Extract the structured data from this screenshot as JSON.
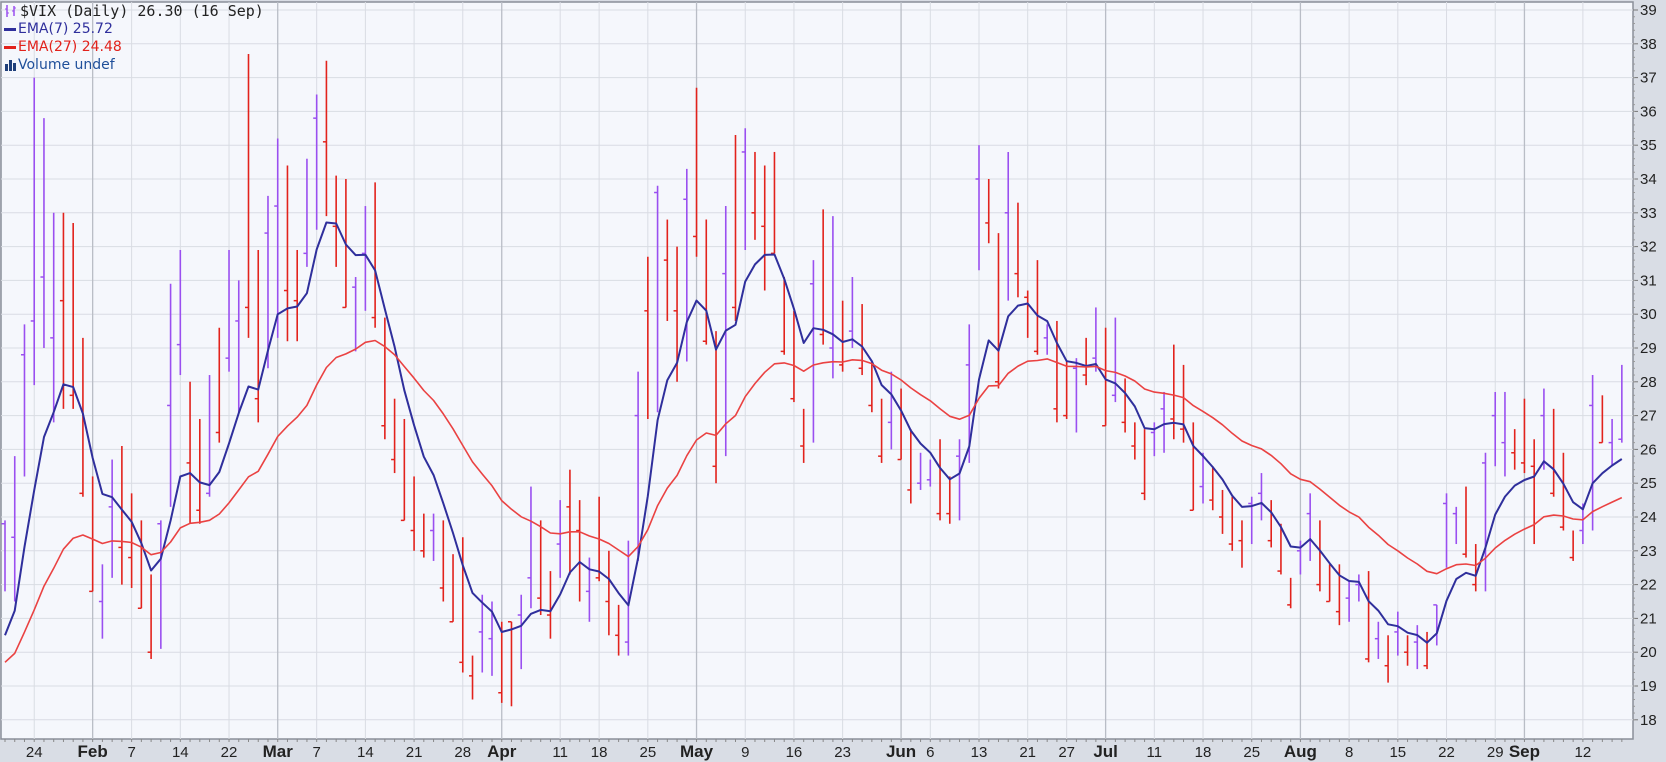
{
  "legend": {
    "title": "$VIX (Daily) 26.30 (16 Sep)",
    "ema7": "EMA(7) 25.72",
    "ema27": "EMA(27) 24.48",
    "volume": "Volume undef"
  },
  "colors": {
    "up": "#9a4ff0",
    "down": "#e2221c",
    "ema7": "#2f2f9c",
    "ema27": "#ea4242",
    "plot_bg": "#f5f7fc",
    "grid": "#d9dce3",
    "month_grid": "#b9bdc6"
  },
  "chart_data": {
    "type": "ohlc-bar",
    "symbol": "$VIX",
    "ylim": [
      18,
      39
    ],
    "y_ticks": [
      18,
      19,
      20,
      21,
      22,
      23,
      24,
      25,
      26,
      27,
      28,
      29,
      30,
      31,
      32,
      33,
      34,
      35,
      36,
      37,
      38,
      39
    ],
    "grid": true,
    "legend_position": "top-left",
    "overlays": [
      {
        "name": "EMA(7)",
        "period": 7,
        "last": 25.72,
        "first": 20.5
      },
      {
        "name": "EMA(27)",
        "period": 27,
        "last": 24.48,
        "first": 19.7
      }
    ],
    "x_ticks": [
      {
        "label": "24",
        "bar": 3,
        "month": false
      },
      {
        "label": "Feb",
        "bar": 9,
        "month": true
      },
      {
        "label": "7",
        "bar": 13,
        "month": false
      },
      {
        "label": "14",
        "bar": 18,
        "month": false
      },
      {
        "label": "22",
        "bar": 23,
        "month": false
      },
      {
        "label": "Mar",
        "bar": 28,
        "month": true
      },
      {
        "label": "7",
        "bar": 32,
        "month": false
      },
      {
        "label": "14",
        "bar": 37,
        "month": false
      },
      {
        "label": "21",
        "bar": 42,
        "month": false
      },
      {
        "label": "28",
        "bar": 47,
        "month": false
      },
      {
        "label": "Apr",
        "bar": 51,
        "month": true
      },
      {
        "label": "11",
        "bar": 57,
        "month": false
      },
      {
        "label": "18",
        "bar": 61,
        "month": false
      },
      {
        "label": "25",
        "bar": 66,
        "month": false
      },
      {
        "label": "May",
        "bar": 71,
        "month": true
      },
      {
        "label": "9",
        "bar": 76,
        "month": false
      },
      {
        "label": "16",
        "bar": 81,
        "month": false
      },
      {
        "label": "23",
        "bar": 86,
        "month": false
      },
      {
        "label": "Jun",
        "bar": 92,
        "month": true
      },
      {
        "label": "6",
        "bar": 95,
        "month": false
      },
      {
        "label": "13",
        "bar": 100,
        "month": false
      },
      {
        "label": "21",
        "bar": 105,
        "month": false
      },
      {
        "label": "27",
        "bar": 109,
        "month": false
      },
      {
        "label": "Jul",
        "bar": 113,
        "month": true
      },
      {
        "label": "11",
        "bar": 118,
        "month": false
      },
      {
        "label": "18",
        "bar": 123,
        "month": false
      },
      {
        "label": "25",
        "bar": 128,
        "month": false
      },
      {
        "label": "Aug",
        "bar": 133,
        "month": true
      },
      {
        "label": "8",
        "bar": 138,
        "month": false
      },
      {
        "label": "15",
        "bar": 143,
        "month": false
      },
      {
        "label": "22",
        "bar": 148,
        "month": false
      },
      {
        "label": "29",
        "bar": 153,
        "month": false
      },
      {
        "label": "Sep",
        "bar": 156,
        "month": true
      },
      {
        "label": "12",
        "bar": 162,
        "month": false
      }
    ],
    "bars_format": [
      "high",
      "low",
      "close",
      "direction"
    ],
    "bars": [
      [
        23.9,
        21.8,
        23.8,
        "u"
      ],
      [
        25.8,
        21.5,
        23.4,
        "u"
      ],
      [
        29.7,
        25.2,
        28.8,
        "u"
      ],
      [
        37.0,
        27.9,
        29.8,
        "u"
      ],
      [
        35.8,
        29.0,
        31.1,
        "u"
      ],
      [
        33.0,
        26.8,
        29.3,
        "u"
      ],
      [
        33.0,
        27.2,
        30.4,
        "d"
      ],
      [
        32.7,
        27.2,
        27.6,
        "d"
      ],
      [
        29.3,
        24.6,
        24.7,
        "d"
      ],
      [
        25.2,
        21.8,
        21.8,
        "d"
      ],
      [
        22.6,
        20.4,
        21.5,
        "u"
      ],
      [
        25.7,
        22.2,
        24.3,
        "u"
      ],
      [
        26.1,
        22.0,
        23.1,
        "d"
      ],
      [
        24.7,
        21.9,
        22.8,
        "d"
      ],
      [
        23.9,
        21.3,
        21.3,
        "d"
      ],
      [
        22.3,
        19.8,
        20.0,
        "d"
      ],
      [
        23.9,
        20.1,
        23.8,
        "u"
      ],
      [
        30.9,
        24.3,
        27.3,
        "u"
      ],
      [
        31.9,
        28.2,
        29.1,
        "u"
      ],
      [
        28.0,
        23.8,
        25.6,
        "d"
      ],
      [
        26.9,
        23.8,
        24.2,
        "d"
      ],
      [
        28.2,
        24.6,
        24.7,
        "u"
      ],
      [
        29.6,
        26.2,
        26.5,
        "d"
      ],
      [
        31.9,
        28.3,
        28.7,
        "u"
      ],
      [
        31.0,
        27.1,
        29.8,
        "u"
      ],
      [
        37.7,
        29.3,
        30.2,
        "d"
      ],
      [
        31.9,
        26.8,
        27.5,
        "d"
      ],
      [
        33.5,
        28.4,
        32.4,
        "u"
      ],
      [
        35.2,
        29.3,
        33.2,
        "u"
      ],
      [
        34.4,
        29.2,
        30.7,
        "d"
      ],
      [
        31.9,
        29.2,
        30.4,
        "d"
      ],
      [
        34.6,
        31.4,
        31.8,
        "u"
      ],
      [
        36.5,
        32.5,
        35.8,
        "u"
      ],
      [
        37.5,
        32.9,
        35.1,
        "d"
      ],
      [
        34.1,
        31.4,
        32.6,
        "d"
      ],
      [
        34.0,
        30.2,
        30.2,
        "d"
      ],
      [
        31.1,
        28.9,
        30.8,
        "u"
      ],
      [
        33.2,
        30.1,
        31.8,
        "u"
      ],
      [
        33.9,
        29.6,
        29.9,
        "d"
      ],
      [
        29.9,
        26.3,
        26.7,
        "d"
      ],
      [
        27.5,
        25.3,
        25.7,
        "d"
      ],
      [
        26.9,
        23.9,
        23.9,
        "d"
      ],
      [
        25.2,
        23.0,
        23.6,
        "d"
      ],
      [
        24.1,
        22.8,
        23.0,
        "d"
      ],
      [
        24.1,
        22.7,
        23.6,
        "u"
      ],
      [
        23.9,
        21.5,
        21.9,
        "d"
      ],
      [
        22.9,
        20.9,
        20.9,
        "d"
      ],
      [
        23.4,
        19.4,
        19.7,
        "d"
      ],
      [
        19.9,
        18.6,
        19.3,
        "d"
      ],
      [
        21.7,
        19.4,
        20.6,
        "u"
      ],
      [
        21.5,
        19.3,
        20.4,
        "u"
      ],
      [
        20.9,
        18.5,
        18.8,
        "d"
      ],
      [
        20.9,
        18.4,
        20.9,
        "d"
      ],
      [
        21.7,
        19.5,
        21.1,
        "u"
      ],
      [
        24.9,
        21.3,
        22.2,
        "u"
      ],
      [
        23.9,
        21.1,
        21.6,
        "d"
      ],
      [
        22.4,
        20.4,
        21.1,
        "d"
      ],
      [
        24.5,
        22.2,
        23.2,
        "u"
      ],
      [
        25.4,
        22.3,
        24.3,
        "d"
      ],
      [
        24.5,
        21.5,
        23.6,
        "d"
      ],
      [
        22.8,
        20.9,
        21.8,
        "u"
      ],
      [
        24.6,
        22.1,
        22.2,
        "d"
      ],
      [
        23.0,
        20.5,
        21.5,
        "d"
      ],
      [
        21.4,
        19.9,
        20.5,
        "d"
      ],
      [
        23.3,
        19.9,
        20.3,
        "u"
      ],
      [
        28.3,
        22.7,
        27.0,
        "u"
      ],
      [
        31.7,
        26.9,
        30.1,
        "d"
      ],
      [
        33.8,
        27.1,
        33.6,
        "u"
      ],
      [
        32.8,
        29.8,
        31.6,
        "d"
      ],
      [
        32.0,
        28.0,
        30.1,
        "d"
      ],
      [
        34.3,
        28.6,
        33.4,
        "u"
      ],
      [
        36.7,
        31.7,
        32.3,
        "d"
      ],
      [
        32.8,
        29.1,
        29.2,
        "d"
      ],
      [
        29.5,
        25.0,
        25.5,
        "d"
      ],
      [
        33.2,
        25.8,
        31.2,
        "u"
      ],
      [
        35.3,
        29.8,
        30.2,
        "d"
      ],
      [
        35.5,
        31.9,
        34.8,
        "u"
      ],
      [
        34.8,
        32.2,
        33.0,
        "d"
      ],
      [
        34.4,
        30.7,
        32.6,
        "d"
      ],
      [
        34.8,
        31.8,
        31.8,
        "d"
      ],
      [
        31.1,
        28.8,
        28.9,
        "d"
      ],
      [
        30.1,
        27.4,
        27.5,
        "d"
      ],
      [
        27.2,
        25.6,
        26.1,
        "d"
      ],
      [
        31.6,
        26.2,
        30.9,
        "u"
      ],
      [
        33.1,
        29.1,
        29.4,
        "d"
      ],
      [
        32.9,
        28.1,
        29.0,
        "u"
      ],
      [
        30.4,
        28.3,
        28.5,
        "d"
      ],
      [
        31.1,
        29.0,
        29.5,
        "u"
      ],
      [
        30.3,
        28.2,
        28.4,
        "d"
      ],
      [
        28.6,
        27.1,
        27.3,
        "d"
      ],
      [
        27.5,
        25.6,
        25.8,
        "d"
      ],
      [
        28.3,
        26.0,
        26.8,
        "u"
      ],
      [
        27.8,
        25.7,
        25.7,
        "d"
      ],
      [
        26.6,
        24.4,
        24.8,
        "d"
      ],
      [
        25.9,
        24.8,
        25.0,
        "u"
      ],
      [
        25.7,
        24.9,
        25.1,
        "u"
      ],
      [
        26.3,
        23.9,
        24.1,
        "d"
      ],
      [
        25.2,
        23.8,
        24.1,
        "d"
      ],
      [
        26.3,
        23.9,
        25.8,
        "u"
      ],
      [
        29.7,
        25.6,
        28.5,
        "u"
      ],
      [
        35.0,
        31.3,
        34.0,
        "u"
      ],
      [
        34.0,
        32.1,
        32.7,
        "d"
      ],
      [
        32.4,
        27.8,
        28.0,
        "d"
      ],
      [
        34.8,
        30.4,
        33.0,
        "u"
      ],
      [
        33.3,
        30.5,
        31.2,
        "d"
      ],
      [
        30.7,
        29.3,
        30.5,
        "d"
      ],
      [
        31.6,
        28.8,
        28.9,
        "d"
      ],
      [
        29.7,
        28.8,
        29.3,
        "u"
      ],
      [
        29.8,
        26.8,
        27.2,
        "d"
      ],
      [
        28.6,
        26.9,
        27.0,
        "d"
      ],
      [
        28.7,
        26.5,
        28.4,
        "u"
      ],
      [
        29.3,
        27.9,
        28.2,
        "d"
      ],
      [
        30.2,
        28.3,
        28.7,
        "u"
      ],
      [
        29.6,
        26.7,
        26.7,
        "d"
      ],
      [
        29.9,
        27.4,
        27.6,
        "u"
      ],
      [
        28.1,
        26.5,
        26.8,
        "d"
      ],
      [
        26.8,
        25.7,
        26.1,
        "d"
      ],
      [
        26.6,
        24.5,
        24.7,
        "d"
      ],
      [
        26.8,
        25.8,
        26.5,
        "u"
      ],
      [
        27.7,
        25.9,
        27.2,
        "u"
      ],
      [
        29.1,
        26.3,
        26.9,
        "d"
      ],
      [
        28.5,
        26.2,
        26.6,
        "d"
      ],
      [
        26.8,
        24.2,
        24.2,
        "d"
      ],
      [
        25.9,
        24.4,
        24.9,
        "u"
      ],
      [
        25.5,
        24.2,
        24.5,
        "d"
      ],
      [
        24.8,
        23.5,
        24.0,
        "d"
      ],
      [
        24.6,
        23.0,
        23.2,
        "d"
      ],
      [
        23.9,
        22.5,
        23.3,
        "d"
      ],
      [
        24.6,
        23.2,
        24.4,
        "u"
      ],
      [
        25.3,
        23.9,
        24.7,
        "u"
      ],
      [
        24.5,
        23.1,
        23.3,
        "d"
      ],
      [
        23.8,
        22.3,
        22.4,
        "d"
      ],
      [
        22.2,
        21.3,
        21.4,
        "d"
      ],
      [
        23.3,
        22.3,
        23.0,
        "u"
      ],
      [
        24.7,
        22.7,
        24.1,
        "u"
      ],
      [
        23.9,
        21.8,
        22.0,
        "d"
      ],
      [
        22.6,
        21.5,
        21.5,
        "d"
      ],
      [
        22.6,
        20.8,
        21.2,
        "d"
      ],
      [
        22.1,
        20.9,
        21.6,
        "u"
      ],
      [
        22.3,
        21.5,
        22.0,
        "u"
      ],
      [
        22.4,
        19.7,
        19.8,
        "d"
      ],
      [
        20.9,
        19.8,
        20.4,
        "u"
      ],
      [
        20.5,
        19.1,
        19.6,
        "d"
      ],
      [
        21.2,
        19.9,
        20.6,
        "u"
      ],
      [
        20.5,
        19.6,
        20.0,
        "d"
      ],
      [
        20.8,
        19.5,
        20.3,
        "u"
      ],
      [
        20.6,
        19.5,
        19.6,
        "d"
      ],
      [
        21.4,
        20.2,
        21.4,
        "u"
      ],
      [
        24.7,
        22.5,
        24.4,
        "u"
      ],
      [
        24.3,
        23.2,
        24.1,
        "u"
      ],
      [
        24.9,
        22.8,
        22.9,
        "d"
      ],
      [
        23.2,
        21.8,
        22.0,
        "d"
      ],
      [
        25.9,
        21.8,
        25.6,
        "u"
      ],
      [
        27.7,
        25.5,
        27.0,
        "u"
      ],
      [
        27.7,
        25.2,
        26.2,
        "u"
      ],
      [
        26.6,
        25.4,
        25.9,
        "d"
      ],
      [
        27.5,
        25.3,
        25.6,
        "d"
      ],
      [
        26.3,
        23.2,
        25.5,
        "d"
      ],
      [
        27.8,
        25.4,
        27.0,
        "u"
      ],
      [
        27.2,
        24.6,
        24.7,
        "d"
      ],
      [
        25.9,
        23.6,
        23.7,
        "d"
      ],
      [
        23.6,
        22.7,
        22.8,
        "d"
      ],
      [
        24.4,
        23.2,
        23.6,
        "u"
      ],
      [
        28.2,
        23.6,
        27.3,
        "u"
      ],
      [
        27.6,
        26.2,
        26.2,
        "d"
      ],
      [
        26.9,
        25.5,
        26.2,
        "u"
      ],
      [
        28.5,
        26.2,
        26.3,
        "u"
      ]
    ]
  }
}
